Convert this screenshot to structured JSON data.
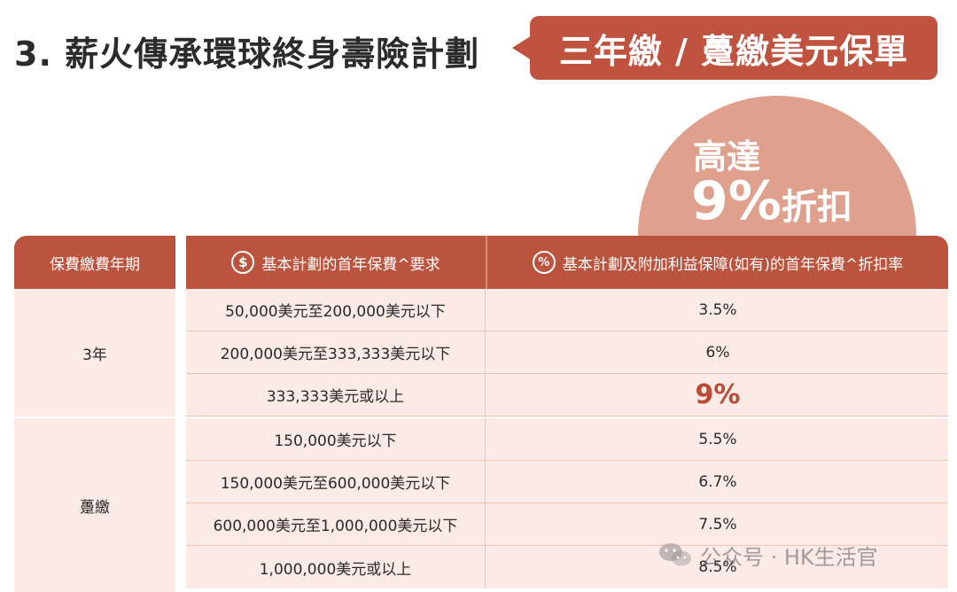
{
  "title": "3. 薪火傳承環球終身壽險計劃",
  "badge": "三年繳 / 躉繳美元保單",
  "promo": {
    "line1": "高達",
    "big": "9%",
    "small": "折扣"
  },
  "table": {
    "headers": {
      "period": "保費繳費年期",
      "requirement": "基本計劃的首年保費^要求",
      "rate": "基本計劃及附加利益保障(如有)的首年保費^折扣率"
    },
    "groups": [
      {
        "period": "3年",
        "rows": [
          {
            "requirement": "50,000美元至200,000美元以下",
            "rate": "3.5%"
          },
          {
            "requirement": "200,000美元至333,333美元以下",
            "rate": "6%"
          },
          {
            "requirement": "333,333美元或以上",
            "rate": "9%"
          }
        ]
      },
      {
        "period": "躉繳",
        "rows": [
          {
            "requirement": "150,000美元以下",
            "rate": "5.5%"
          },
          {
            "requirement": "150,000美元至600,000美元以下",
            "rate": "6.7%"
          },
          {
            "requirement": "600,000美元至1,000,000美元以下",
            "rate": "7.5%"
          },
          {
            "requirement": "1,000,000美元或以上",
            "rate": "8.5%"
          }
        ]
      }
    ]
  },
  "icons": {
    "requirement": "dollar-circle-icon",
    "rate": "percent-circle-icon",
    "watermark": "wechat-icon"
  },
  "colors": {
    "accent": "#bb543f",
    "circle": "#dfa08e",
    "row_bg": "#fbeae6",
    "highlight": "#b94a35"
  },
  "watermark": "公众号 · HK生活官"
}
